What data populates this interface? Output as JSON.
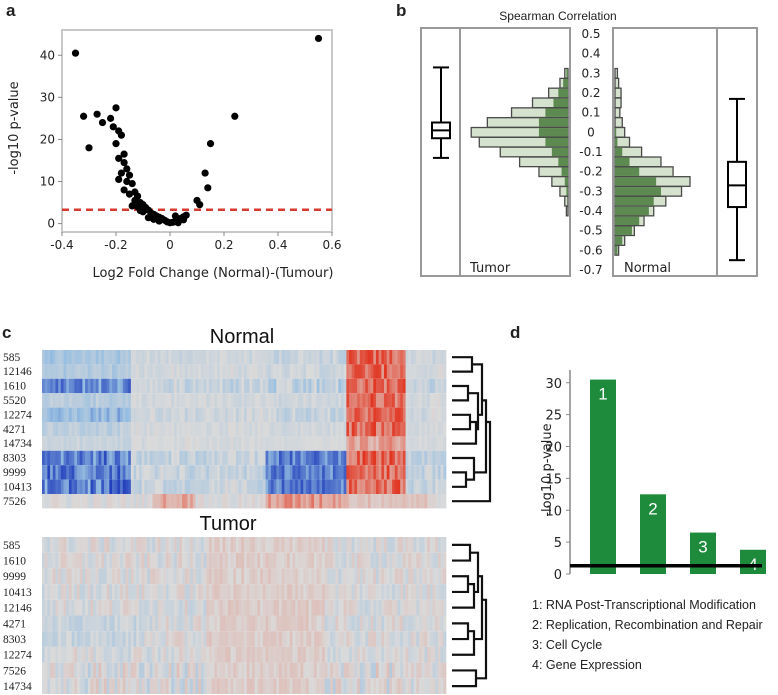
{
  "panels": {
    "a": "a",
    "b": "b",
    "c": "c",
    "d": "d"
  },
  "chart_data": [
    {
      "panel": "a",
      "type": "scatter",
      "xlabel": "Log2 Fold Change (Normal)-(Tumour)",
      "ylabel": "-log10 p-value",
      "xlim": [
        -0.4,
        0.6
      ],
      "ylim": [
        -2,
        46
      ],
      "xticks": [
        "-0.4",
        "-0.2",
        "0",
        "0.2",
        "0.4",
        "0.6"
      ],
      "yticks": [
        "0",
        "10",
        "20",
        "30",
        "40"
      ],
      "threshold": 3.3,
      "threshold_color": "#d63a2e",
      "points": [
        [
          -0.35,
          40.5
        ],
        [
          -0.32,
          25.5
        ],
        [
          -0.3,
          18
        ],
        [
          -0.27,
          26
        ],
        [
          -0.25,
          24
        ],
        [
          -0.22,
          25
        ],
        [
          -0.2,
          27.5
        ],
        [
          -0.21,
          23
        ],
        [
          -0.19,
          22
        ],
        [
          -0.2,
          19
        ],
        [
          -0.18,
          21
        ],
        [
          -0.17,
          16.5
        ],
        [
          -0.19,
          15.5
        ],
        [
          -0.17,
          14.5
        ],
        [
          -0.16,
          13
        ],
        [
          -0.18,
          12
        ],
        [
          -0.15,
          11.5
        ],
        [
          -0.19,
          10.5
        ],
        [
          -0.16,
          10
        ],
        [
          -0.14,
          9.5
        ],
        [
          -0.17,
          8
        ],
        [
          -0.13,
          7.5
        ],
        [
          -0.15,
          7
        ],
        [
          -0.12,
          6.5
        ],
        [
          -0.13,
          5.5
        ],
        [
          -0.11,
          5
        ],
        [
          -0.1,
          4.5
        ],
        [
          -0.12,
          4
        ],
        [
          -0.09,
          3.8
        ],
        [
          -0.08,
          3.2
        ],
        [
          -0.1,
          2.8
        ],
        [
          -0.07,
          2.5
        ],
        [
          -0.06,
          2.2
        ],
        [
          -0.05,
          1.8
        ],
        [
          -0.04,
          1.5
        ],
        [
          -0.03,
          1.2
        ],
        [
          -0.02,
          0.8
        ],
        [
          -0.01,
          0.4
        ],
        [
          0.0,
          0.2
        ],
        [
          0.01,
          0.3
        ],
        [
          0.02,
          0.5
        ],
        [
          0.03,
          0.8
        ],
        [
          0.04,
          1.2
        ],
        [
          0.05,
          1.6
        ],
        [
          0.06,
          2.0
        ],
        [
          0.05,
          0.9
        ],
        [
          0.03,
          0.2
        ],
        [
          -0.04,
          0.6
        ],
        [
          -0.06,
          1.0
        ],
        [
          -0.08,
          1.4
        ],
        [
          0.1,
          5.5
        ],
        [
          0.11,
          4.5
        ],
        [
          0.13,
          12
        ],
        [
          0.15,
          19
        ],
        [
          0.14,
          8.5
        ],
        [
          0.24,
          25.5
        ],
        [
          0.55,
          44
        ],
        [
          -0.14,
          4.2
        ],
        [
          -0.11,
          3.1
        ],
        [
          0.02,
          1.8
        ]
      ]
    },
    {
      "panel": "b",
      "type": "bar",
      "title": "Spearman Correlation",
      "yticks": [
        "0.5",
        "0.4",
        "0.3",
        "0.2",
        "0.1",
        "0",
        "-0.1",
        "-0.2",
        "-0.3",
        "-0.4",
        "-0.5",
        "-0.6",
        "-0.7"
      ],
      "ylim": [
        -0.7,
        0.5
      ],
      "bin_centers": [
        0.3,
        0.25,
        0.2,
        0.15,
        0.1,
        0.05,
        0.0,
        -0.05,
        -0.1,
        -0.15,
        -0.2,
        -0.25,
        -0.3,
        -0.35,
        -0.4,
        -0.45,
        -0.5,
        -0.55,
        -0.6
      ],
      "groups": [
        {
          "name": "Tumor",
          "total": [
            2,
            5,
            12,
            22,
            35,
            50,
            60,
            55,
            42,
            30,
            18,
            10,
            5,
            2,
            1,
            0,
            0,
            0,
            0
          ],
          "highlight": [
            1,
            3,
            6,
            9,
            14,
            18,
            18,
            14,
            10,
            6,
            4,
            2,
            1,
            0,
            0,
            0,
            0,
            0,
            0
          ],
          "box": {
            "min": -0.13,
            "q1": -0.03,
            "median": 0.01,
            "q3": 0.05,
            "max": 0.33
          }
        },
        {
          "name": "Normal",
          "total": [
            2,
            3,
            5,
            5,
            4,
            6,
            8,
            12,
            22,
            38,
            48,
            62,
            55,
            42,
            32,
            24,
            16,
            8,
            3
          ],
          "highlight": [
            0,
            0,
            0,
            0,
            0,
            0,
            1,
            2,
            6,
            12,
            20,
            34,
            38,
            32,
            28,
            20,
            14,
            6,
            2
          ],
          "box": {
            "min": -0.65,
            "q1": -0.38,
            "median": -0.27,
            "q3": -0.15,
            "max": 0.17
          }
        }
      ],
      "colors": {
        "light": "#d5e2cd",
        "dark": "#5c8a50",
        "edge": "#4a4a4a",
        "frame": "#999999"
      }
    },
    {
      "panel": "c",
      "type": "heatmap",
      "heatmaps": [
        {
          "title": "Normal",
          "rows": [
            "585",
            "12146",
            "1610",
            "5520",
            "12274",
            "4271",
            "14734",
            "8303",
            "9999",
            "10413",
            "7526"
          ]
        },
        {
          "title": "Tumor",
          "rows": [
            "585",
            "1610",
            "9999",
            "10413",
            "12146",
            "4271",
            "8303",
            "12274",
            "7526",
            "14734"
          ]
        }
      ]
    },
    {
      "panel": "d",
      "type": "bar",
      "ylabel": "-log10 p-value",
      "ylim": [
        0,
        32
      ],
      "yticks": [
        "0",
        "5",
        "10",
        "15",
        "20",
        "25",
        "30"
      ],
      "categories": [
        "1",
        "2",
        "3",
        "4"
      ],
      "values": [
        30.5,
        12.5,
        6.5,
        3.8
      ],
      "threshold": 1.3,
      "bar_color": "#1e8a3c",
      "legend": [
        "1: RNA Post-Transcriptional Modification",
        "2: Replication, Recombination and Repair",
        "3: Cell Cycle",
        "4: Gene Expression"
      ]
    }
  ]
}
